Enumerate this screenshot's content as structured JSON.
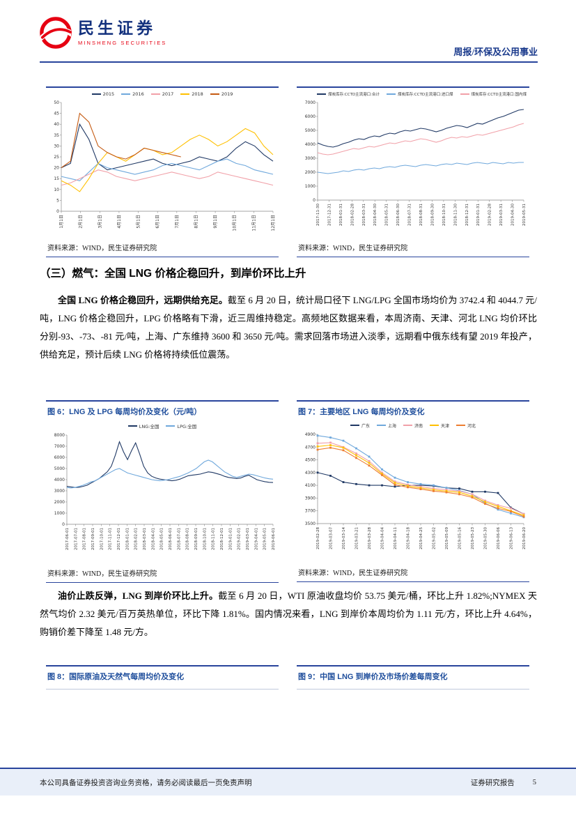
{
  "header": {
    "brand_cn": "民生证券",
    "brand_en": "MINSHENG SECURITIES",
    "doc_type": "周报/环保及公用事业"
  },
  "section": {
    "heading": "（三）燃气：全国 LNG 价格企稳回升，到岸价环比上升",
    "para1_lead": "全国 LNG 价格企稳回升，远期供给充足。",
    "para1_body": "截至 6 月 20 日，统计局口径下 LNG/LPG 全国市场均价为 3742.4 和 4044.7 元/吨，LNG 价格企稳回升，LPG 价格略有下滑，近三周维持稳定。高频地区数据来看，本周济南、天津、河北 LNG 均价环比分别-93、-73、-81 元/吨，上海、广东维持 3600 和 3650 元/吨。需求回落市场进入淡季，远期看中俄东线有望 2019 年投产，供给充足，预计后续 LNG 价格将持续低位震荡。",
    "para2_lead": "油价止跌反弹，LNG 到岸价环比上升。",
    "para2_body": "截至 6 月 20 日，WTI 原油收盘均价 53.75 美元/桶，环比上升 1.82%;NYMEX 天然气均价 2.32 美元/百万英热单位，环比下降 1.81%。国内情况来看，LNG 到岸价本周均价为 1.11 元/方，环比上升 4.64%，购销价差下降至 1.48 元/方。"
  },
  "figures": {
    "fig6": "图 6：LNG 及 LPG 每周均价及变化（元/吨）",
    "fig7": "图 7：主要地区 LNG 每周均价及变化",
    "fig8": "图 8：国际原油及天然气每周均价及变化",
    "fig9": "图 9：中国 LNG 到岸价及市场价差每周变化",
    "source": "资料来源：WIND，民生证券研究院"
  },
  "footer": {
    "left": "本公司具备证券投资咨询业务资格，请务必阅读最后一页免责声明",
    "right": "证券研究报告",
    "page": "5"
  },
  "chart_data": [
    {
      "type": "line",
      "title": "",
      "x": [
        "1月1日",
        "2月1日",
        "3月1日",
        "4月1日",
        "5月1日",
        "6月1日",
        "7月1日",
        "8月1日",
        "9月1日",
        "10月1日",
        "11月1日",
        "12月1日"
      ],
      "ylim": [
        0,
        50
      ],
      "ystep": 5,
      "grid": false,
      "legend_align": "center",
      "legend_fs": 6.5,
      "xfs": 6,
      "ml": 22,
      "mb": 38,
      "series": [
        {
          "name": "2015",
          "color": "#1F3864",
          "values": [
            20,
            22,
            40,
            33,
            22,
            19,
            20,
            21,
            22,
            23,
            24,
            22,
            21,
            22,
            23,
            25,
            24,
            23,
            25,
            29,
            32,
            30,
            26,
            23
          ]
        },
        {
          "name": "2016",
          "color": "#6FA8DC",
          "values": [
            16,
            15,
            14,
            18,
            22,
            20,
            19,
            18,
            17,
            18,
            19,
            21,
            22,
            21,
            20,
            19,
            21,
            23,
            24,
            22,
            21,
            19,
            18,
            17
          ]
        },
        {
          "name": "2017",
          "color": "#F1A0A8",
          "values": [
            12,
            13,
            15,
            17,
            19,
            18,
            16,
            15,
            14,
            15,
            16,
            17,
            18,
            17,
            16,
            15,
            16,
            18,
            17,
            16,
            15,
            14,
            13,
            12
          ]
        },
        {
          "name": "2018",
          "color": "#FFC000",
          "values": [
            14,
            12,
            9,
            15,
            22,
            27,
            25,
            23,
            26,
            29,
            28,
            26,
            27,
            30,
            33,
            35,
            33,
            30,
            32,
            35,
            38,
            36,
            30,
            26
          ]
        },
        {
          "name": "2019",
          "color": "#C55A11",
          "values": [
            20,
            23,
            45,
            41,
            30,
            27,
            25,
            24,
            26,
            29,
            28,
            27,
            26,
            25,
            null,
            null,
            null,
            null,
            null,
            null,
            null,
            null,
            null,
            null
          ]
        }
      ]
    },
    {
      "type": "line",
      "title": "",
      "x": [
        "2017-11-30",
        "2017-12-31",
        "2018-01-31",
        "2018-02-28",
        "2018-03-31",
        "2018-04-30",
        "2018-05-31",
        "2018-06-30",
        "2018-07-31",
        "2018-08-31",
        "2018-09-30",
        "2018-10-31",
        "2018-11-30",
        "2018-12-31",
        "2019-01-31",
        "2019-02-28",
        "2019-03-31",
        "2019-04-30",
        "2019-05-31"
      ],
      "ylim": [
        0,
        7000
      ],
      "ystep": 1000,
      "grid": false,
      "legend_align": "right",
      "legend_fs": 5.5,
      "xfs": 5.5,
      "ml": 30,
      "mb": 54,
      "series": [
        {
          "name": "煤炭库存:CCTD主流港口:合计",
          "color": "#1F3864",
          "values": [
            4100,
            3950,
            3850,
            3800,
            3900,
            4050,
            4150,
            4300,
            4400,
            4350,
            4500,
            4600,
            4550,
            4700,
            4800,
            4750,
            4900,
            5000,
            4950,
            5050,
            5150,
            5100,
            5000,
            4900,
            5000,
            5150,
            5250,
            5350,
            5300,
            5200,
            5350,
            5500,
            5450,
            5600,
            5750,
            5900,
            6000,
            6150,
            6300,
            6450,
            6500
          ]
        },
        {
          "name": "煤炭库存:CCTD主流港口:进口煤",
          "color": "#6FA8DC",
          "values": [
            2000,
            1950,
            1900,
            1950,
            2000,
            2100,
            2050,
            2150,
            2200,
            2150,
            2250,
            2300,
            2250,
            2350,
            2400,
            2350,
            2450,
            2500,
            2450,
            2400,
            2500,
            2550,
            2500,
            2450,
            2550,
            2600,
            2550,
            2650,
            2600,
            2550,
            2650,
            2700,
            2650,
            2600,
            2700,
            2650,
            2600,
            2700,
            2650,
            2700,
            2700
          ]
        },
        {
          "name": "煤炭库存:CCTD主流港口:国内煤",
          "color": "#F1A0A8",
          "values": [
            3400,
            3300,
            3250,
            3300,
            3400,
            3500,
            3600,
            3700,
            3650,
            3750,
            3850,
            3800,
            3900,
            4000,
            4100,
            4050,
            4150,
            4250,
            4200,
            4300,
            4400,
            4350,
            4250,
            4150,
            4250,
            4400,
            4500,
            4450,
            4550,
            4500,
            4600,
            4700,
            4650,
            4750,
            4850,
            4950,
            5050,
            5150,
            5250,
            5400,
            5500
          ]
        }
      ]
    },
    {
      "type": "line",
      "title": "LNG 及 LPG 每周均价及变化（元/吨）",
      "x": [
        "2017-06-01",
        "2017-07-01",
        "2017-08-01",
        "2017-09-01",
        "2017-10-01",
        "2017-11-01",
        "2017-12-01",
        "2018-01-01",
        "2018-02-01",
        "2018-03-01",
        "2018-04-01",
        "2018-05-01",
        "2018-06-01",
        "2018-07-01",
        "2018-08-01",
        "2018-09-01",
        "2018-10-01",
        "2018-11-01",
        "2018-12-01",
        "2019-01-01",
        "2019-02-01",
        "2019-03-01",
        "2019-04-01",
        "2019-05-01",
        "2019-06-01"
      ],
      "ylim": [
        0,
        8000
      ],
      "ystep": 1000,
      "grid": false,
      "legend_align": "center",
      "legend_fs": 6.5,
      "xfs": 5.5,
      "ml": 30,
      "mb": 56,
      "series": [
        {
          "name": "LNG:全国",
          "color": "#1F3864",
          "values": [
            3400,
            3350,
            3300,
            3320,
            3400,
            3500,
            3700,
            3900,
            4100,
            4400,
            4700,
            5200,
            6200,
            7400,
            6500,
            5800,
            6600,
            7300,
            6300,
            5200,
            4600,
            4300,
            4150,
            4050,
            4000,
            3950,
            3900,
            3950,
            4050,
            4200,
            4350,
            4400,
            4450,
            4500,
            4600,
            4700,
            4650,
            4550,
            4450,
            4300,
            4200,
            4150,
            4100,
            4150,
            4300,
            4400,
            4200,
            4000,
            3900,
            3820,
            3760,
            3742
          ]
        },
        {
          "name": "LPG:全国",
          "color": "#6FA8DC",
          "values": [
            3300,
            3250,
            3300,
            3400,
            3500,
            3650,
            3800,
            3900,
            4100,
            4300,
            4500,
            4700,
            4900,
            5000,
            4800,
            4600,
            4500,
            4400,
            4300,
            4200,
            4100,
            4000,
            3950,
            3900,
            3950,
            4000,
            4100,
            4200,
            4300,
            4450,
            4600,
            4800,
            5000,
            5300,
            5600,
            5750,
            5600,
            5300,
            5000,
            4700,
            4500,
            4300,
            4200,
            4300,
            4400,
            4500,
            4450,
            4350,
            4250,
            4150,
            4080,
            4045
          ]
        }
      ]
    },
    {
      "type": "line",
      "title": "主要地区 LNG 每周均价及变化",
      "x": [
        "2019-02-28",
        "2019-03-07",
        "2019-03-14",
        "2019-03-21",
        "2019-03-28",
        "2019-04-04",
        "2019-04-11",
        "2019-04-18",
        "2019-04-25",
        "2019-05-02",
        "2019-05-09",
        "2019-05-16",
        "2019-05-23",
        "2019-05-30",
        "2019-06-06",
        "2019-06-13",
        "2019-06-20"
      ],
      "ylim": [
        3500,
        4900
      ],
      "ystep": 200,
      "markers": true,
      "grid": false,
      "legend_align": "center",
      "legend_fs": 6,
      "xfs": 5.5,
      "ml": 30,
      "mb": 56,
      "series": [
        {
          "name": "广东",
          "color": "#1F3864",
          "values": [
            4300,
            4250,
            4150,
            4120,
            4100,
            4100,
            4080,
            4100,
            4100,
            4090,
            4060,
            4050,
            4000,
            4000,
            3980,
            3750,
            3650
          ]
        },
        {
          "name": "上海",
          "color": "#6FA8DC",
          "values": [
            4880,
            4850,
            4800,
            4680,
            4550,
            4350,
            4220,
            4150,
            4120,
            4100,
            4060,
            4020,
            3960,
            3820,
            3720,
            3660,
            3600
          ]
        },
        {
          "name": "济南",
          "color": "#F1A0A8",
          "values": [
            4760,
            4770,
            4700,
            4600,
            4480,
            4300,
            4160,
            4110,
            4080,
            4050,
            4030,
            4010,
            3960,
            3860,
            3790,
            3740,
            3650
          ]
        },
        {
          "name": "天津",
          "color": "#FFC000",
          "values": [
            4710,
            4730,
            4690,
            4570,
            4450,
            4280,
            4140,
            4090,
            4060,
            4030,
            4010,
            3990,
            3930,
            3840,
            3770,
            3700,
            3630
          ]
        },
        {
          "name": "河北",
          "color": "#ED7D31",
          "values": [
            4660,
            4690,
            4650,
            4530,
            4410,
            4260,
            4110,
            4070,
            4040,
            4010,
            3990,
            3960,
            3910,
            3810,
            3740,
            3690,
            3610
          ]
        }
      ]
    }
  ]
}
